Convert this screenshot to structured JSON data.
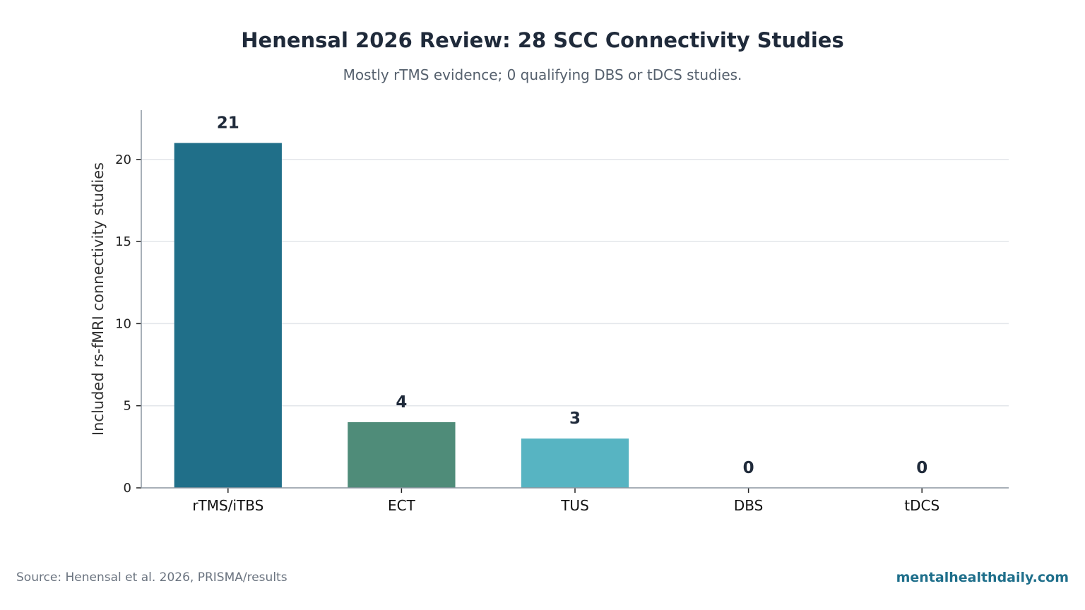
{
  "chart_data": {
    "type": "bar",
    "title": "Henensal 2026 Review: 28 SCC Connectivity Studies",
    "subtitle": "Mostly rTMS evidence; 0 qualifying DBS or tDCS studies.",
    "categories": [
      "rTMS/iTBS",
      "ECT",
      "TUS",
      "DBS",
      "tDCS"
    ],
    "values": [
      21,
      4,
      3,
      0,
      0
    ],
    "value_labels": [
      "21",
      "4",
      "3",
      "0",
      "0"
    ],
    "colors": [
      "#206f89",
      "#4f8c79",
      "#57b4c2",
      "#206f89",
      "#206f89"
    ],
    "xlabel": "",
    "ylabel": "Included rs-fMRI connectivity studies",
    "ylim": [
      0,
      23
    ],
    "yticks": [
      0,
      5,
      10,
      15,
      20
    ],
    "ytick_labels": [
      "0",
      "5",
      "10",
      "15",
      "20"
    ],
    "grid": "horizontal",
    "legend": "none"
  },
  "footer": {
    "source": "Source: Henensal et al. 2026, PRISMA/results",
    "brand": "mentalhealthdaily.com"
  }
}
